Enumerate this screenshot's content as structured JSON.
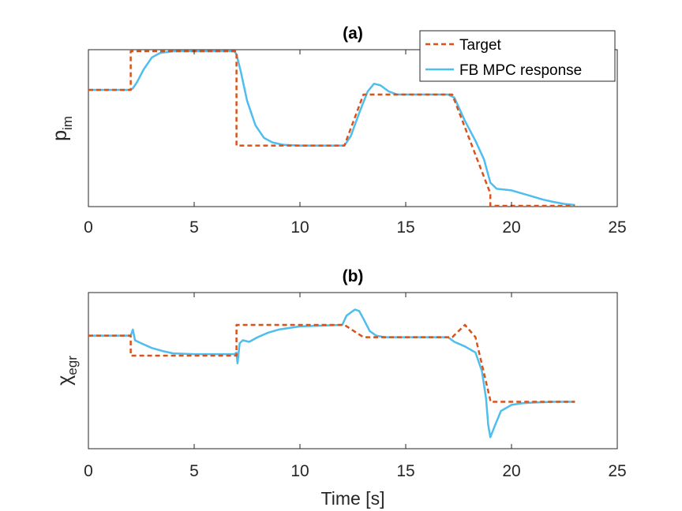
{
  "chart_data": [
    {
      "type": "line",
      "title": "(a)",
      "xlabel": "",
      "ylabel_main": "p",
      "ylabel_sub": "im",
      "xlim": [
        0,
        25
      ],
      "ylim": [
        0,
        1
      ],
      "xticks": [
        "0",
        "5",
        "10",
        "15",
        "20",
        "25"
      ],
      "ytick_labels": "none",
      "grid": false,
      "legend": {
        "placement": "top-right",
        "entries": [
          "Target",
          "FB MPC response"
        ]
      },
      "series": [
        {
          "name": "Target",
          "color": "#D95319",
          "style": "dashed",
          "x": [
            0,
            2.0,
            2.0,
            7.0,
            7.0,
            12.1,
            13.0,
            17.2,
            19.0,
            19.0,
            23.0
          ],
          "y": [
            0.75,
            0.75,
            1.0,
            1.0,
            0.39,
            0.39,
            0.72,
            0.72,
            0.08,
            0.0,
            0.0
          ]
        },
        {
          "name": "FB MPC response",
          "color": "#4DBEEE",
          "style": "solid",
          "x": [
            0,
            2.0,
            2.1,
            2.3,
            2.6,
            3.0,
            3.4,
            4.0,
            5.0,
            6.0,
            6.9,
            7.0,
            7.2,
            7.5,
            7.9,
            8.3,
            8.7,
            9.2,
            10.0,
            12.1,
            12.4,
            12.8,
            13.2,
            13.5,
            13.8,
            14.2,
            14.6,
            15.0,
            16.0,
            17.0,
            17.3,
            17.8,
            18.3,
            18.7,
            19.0,
            19.3,
            20.0,
            20.5,
            21.0,
            21.5,
            22.0,
            22.5,
            23.0
          ],
          "y": [
            0.75,
            0.75,
            0.76,
            0.8,
            0.88,
            0.96,
            0.99,
            1.0,
            1.0,
            1.0,
            1.0,
            0.98,
            0.87,
            0.68,
            0.52,
            0.44,
            0.41,
            0.395,
            0.39,
            0.39,
            0.45,
            0.6,
            0.74,
            0.79,
            0.78,
            0.74,
            0.72,
            0.72,
            0.72,
            0.72,
            0.7,
            0.55,
            0.42,
            0.3,
            0.15,
            0.11,
            0.1,
            0.08,
            0.06,
            0.04,
            0.025,
            0.012,
            0.005
          ]
        }
      ]
    },
    {
      "type": "line",
      "title": "(b)",
      "xlabel": "Time [s]",
      "ylabel_main": "χ",
      "ylabel_sub": "egr",
      "xlim": [
        0,
        25
      ],
      "ylim": [
        0,
        1
      ],
      "xticks": [
        "0",
        "5",
        "10",
        "15",
        "20",
        "25"
      ],
      "ytick_labels": "none",
      "grid": false,
      "series": [
        {
          "name": "Target",
          "color": "#D95319",
          "style": "dashed",
          "x": [
            0,
            2.0,
            2.0,
            7.0,
            7.0,
            12.1,
            13.0,
            17.2,
            17.8,
            18.3,
            19.0,
            19.0,
            23.0
          ],
          "y": [
            0.73,
            0.73,
            0.6,
            0.6,
            0.8,
            0.8,
            0.72,
            0.72,
            0.8,
            0.72,
            0.31,
            0.3,
            0.3
          ]
        },
        {
          "name": "FB MPC response",
          "color": "#4DBEEE",
          "style": "solid",
          "x": [
            0,
            2.0,
            2.1,
            2.2,
            2.5,
            3.0,
            3.5,
            4.0,
            5.0,
            6.0,
            6.9,
            7.0,
            7.05,
            7.15,
            7.3,
            7.6,
            8.0,
            8.5,
            9.0,
            10.0,
            12.0,
            12.1,
            12.2,
            12.4,
            12.6,
            12.8,
            13.0,
            13.3,
            13.6,
            14.0,
            15.0,
            16.0,
            17.0,
            17.3,
            17.8,
            18.3,
            18.6,
            18.8,
            18.9,
            19.0,
            19.2,
            19.5,
            20.0,
            20.5,
            21.0,
            22.0,
            23.0
          ],
          "y": [
            0.73,
            0.73,
            0.77,
            0.7,
            0.68,
            0.65,
            0.63,
            0.615,
            0.61,
            0.61,
            0.61,
            0.62,
            0.55,
            0.68,
            0.7,
            0.69,
            0.72,
            0.75,
            0.77,
            0.79,
            0.8,
            0.83,
            0.86,
            0.88,
            0.9,
            0.89,
            0.84,
            0.76,
            0.73,
            0.72,
            0.72,
            0.72,
            0.72,
            0.69,
            0.66,
            0.62,
            0.5,
            0.32,
            0.15,
            0.07,
            0.14,
            0.24,
            0.28,
            0.29,
            0.295,
            0.3,
            0.3
          ]
        }
      ]
    }
  ]
}
